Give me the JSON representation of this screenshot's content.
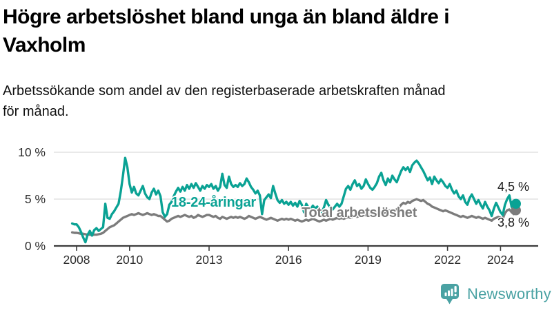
{
  "header": {
    "title": "Högre arbetslöshet bland unga än bland äldre i\nVaxholm",
    "subtitle": "Arbetssökande som andel av den registerbaserade arbetskraften månad\nför månad."
  },
  "chart_data": {
    "type": "line",
    "title": "Högre arbetslöshet bland unga än bland äldre i Vaxholm",
    "subtitle": "Arbetssökande som andel av den registerbaserade arbetskraften månad för månad.",
    "x_unit": "month",
    "x_start_year_decimal": 2007.8333,
    "x_tick_years": [
      2008,
      2010,
      2013,
      2016,
      2019,
      2022,
      2024
    ],
    "x_tick_labels": [
      "2008",
      "2010",
      "2013",
      "2016",
      "2019",
      "2022",
      "2024"
    ],
    "y_ticks": [
      {
        "value": 0,
        "label": "0 %"
      },
      {
        "value": 5,
        "label": "5 %"
      },
      {
        "value": 10,
        "label": "10 %"
      }
    ],
    "ylim": [
      0,
      10.5
    ],
    "grid": "horizontal",
    "legend": "inline-labels",
    "series": [
      {
        "name": "18-24-åringar",
        "color": "#0aa294",
        "end_label": "4,5 %",
        "end_value": 4.5,
        "values": [
          2.4,
          2.3,
          2.3,
          2.0,
          1.5,
          0.9,
          0.4,
          1.2,
          1.6,
          1.1,
          1.7,
          1.9,
          1.6,
          1.8,
          2.0,
          4.5,
          3.0,
          2.9,
          3.4,
          3.7,
          4.1,
          4.5,
          5.8,
          7.5,
          9.4,
          8.4,
          6.6,
          5.7,
          6.3,
          5.6,
          5.4,
          5.9,
          6.4,
          5.6,
          5.2,
          5.0,
          5.7,
          6.1,
          5.5,
          5.9,
          5.3,
          3.6,
          3.1,
          3.4,
          4.4,
          4.7,
          5.3,
          5.8,
          6.2,
          5.8,
          6.3,
          5.9,
          6.5,
          6.1,
          6.6,
          6.2,
          6.7,
          6.3,
          5.9,
          6.4,
          6.1,
          6.5,
          6.3,
          6.6,
          6.1,
          6.4,
          5.9,
          6.3,
          7.7,
          6.5,
          6.2,
          7.4,
          6.6,
          6.3,
          6.5,
          6.3,
          6.7,
          6.4,
          6.6,
          7.2,
          6.8,
          6.3,
          6.0,
          5.6,
          5.9,
          5.4,
          3.4,
          4.9,
          5.2,
          5.5,
          5.1,
          6.4,
          5.6,
          4.9,
          4.6,
          4.9,
          4.5,
          4.7,
          4.4,
          4.7,
          4.3,
          4.6,
          4.2,
          4.8,
          4.4,
          3.6,
          4.5,
          4.1,
          3.9,
          4.3,
          4.0,
          4.2,
          3.8,
          3.6,
          4.1,
          4.9,
          4.4,
          4.1,
          3.9,
          4.2,
          4.5,
          4.2,
          4.5,
          5.3,
          6.1,
          6.4,
          6.0,
          6.6,
          7.0,
          6.4,
          6.6,
          6.1,
          6.4,
          7.1,
          6.6,
          6.2,
          6.0,
          6.3,
          6.7,
          7.4,
          7.8,
          7.0,
          6.5,
          7.2,
          6.8,
          7.5,
          7.1,
          6.8,
          7.4,
          8.0,
          8.4,
          8.1,
          8.4,
          7.9,
          8.6,
          8.9,
          9.1,
          8.8,
          8.4,
          8.0,
          7.5,
          7.0,
          7.3,
          6.6,
          7.4,
          7.0,
          6.7,
          7.1,
          6.8,
          6.4,
          6.2,
          6.6,
          6.0,
          5.6,
          5.9,
          5.3,
          5.0,
          5.4,
          4.7,
          4.4,
          5.1,
          5.5,
          5.0,
          4.5,
          4.9,
          4.4,
          4.0,
          4.7,
          4.2,
          3.8,
          3.2,
          4.0,
          4.6,
          4.1,
          3.6,
          3.3,
          4.4,
          5.0,
          5.4,
          4.2,
          3.8,
          4.5
        ]
      },
      {
        "name": "Total arbetslöshet",
        "color": "#7c7c7c",
        "end_label": "3,8 %",
        "end_value": 3.8,
        "values": [
          1.45,
          1.4,
          1.4,
          1.35,
          1.3,
          1.3,
          1.25,
          1.2,
          1.2,
          1.15,
          1.2,
          1.2,
          1.25,
          1.3,
          1.4,
          1.6,
          1.8,
          2.0,
          2.1,
          2.2,
          2.4,
          2.6,
          2.8,
          3.0,
          3.1,
          3.2,
          3.3,
          3.4,
          3.3,
          3.4,
          3.5,
          3.4,
          3.3,
          3.4,
          3.5,
          3.4,
          3.3,
          3.4,
          3.3,
          3.2,
          3.2,
          3.0,
          2.8,
          2.6,
          2.7,
          2.9,
          3.0,
          3.1,
          3.2,
          3.1,
          3.2,
          3.3,
          3.2,
          3.1,
          3.2,
          3.0,
          3.1,
          3.3,
          3.2,
          3.1,
          3.2,
          3.3,
          3.3,
          3.2,
          3.1,
          3.2,
          3.0,
          2.9,
          3.1,
          3.0,
          2.9,
          3.0,
          3.1,
          3.0,
          3.1,
          3.0,
          3.1,
          3.0,
          2.9,
          3.0,
          3.2,
          3.1,
          3.0,
          2.9,
          3.0,
          3.1,
          3.0,
          2.9,
          2.8,
          2.9,
          3.0,
          2.9,
          2.8,
          2.7,
          2.8,
          2.9,
          2.8,
          2.9,
          2.8,
          2.9,
          2.8,
          2.7,
          2.8,
          2.7,
          2.6,
          2.7,
          2.8,
          2.7,
          2.8,
          2.9,
          2.8,
          2.7,
          2.6,
          2.7,
          2.8,
          2.7,
          2.8,
          2.9,
          2.8,
          2.9,
          3.0,
          2.9,
          3.0,
          2.9,
          3.0,
          3.1,
          3.0,
          3.1,
          3.2,
          3.1,
          3.2,
          3.1,
          3.2,
          3.3,
          3.2,
          3.3,
          3.4,
          3.3,
          3.4,
          3.5,
          3.6,
          3.5,
          3.6,
          3.7,
          3.8,
          3.9,
          3.8,
          3.9,
          4.1,
          4.4,
          4.6,
          4.5,
          4.7,
          4.6,
          4.8,
          4.9,
          5.0,
          4.9,
          4.8,
          4.9,
          4.7,
          4.5,
          4.4,
          4.2,
          4.1,
          4.0,
          3.9,
          3.8,
          3.7,
          3.8,
          3.7,
          3.6,
          3.5,
          3.4,
          3.3,
          3.2,
          3.1,
          3.2,
          3.1,
          3.0,
          3.1,
          3.2,
          3.1,
          3.0,
          3.1,
          3.0,
          2.9,
          3.0,
          2.9,
          2.8,
          2.7,
          2.9,
          3.0,
          3.1,
          3.0,
          2.9,
          3.5,
          3.8,
          3.9,
          3.6,
          3.4,
          3.8
        ]
      }
    ]
  },
  "footer": {
    "brand": "Newsworthy",
    "logo_color": "#4aa2a3"
  },
  "style": {
    "axis_color": "#3b3b3b",
    "grid_color": "#e2e2e2",
    "tick_text_color": "#2e2e2e"
  }
}
